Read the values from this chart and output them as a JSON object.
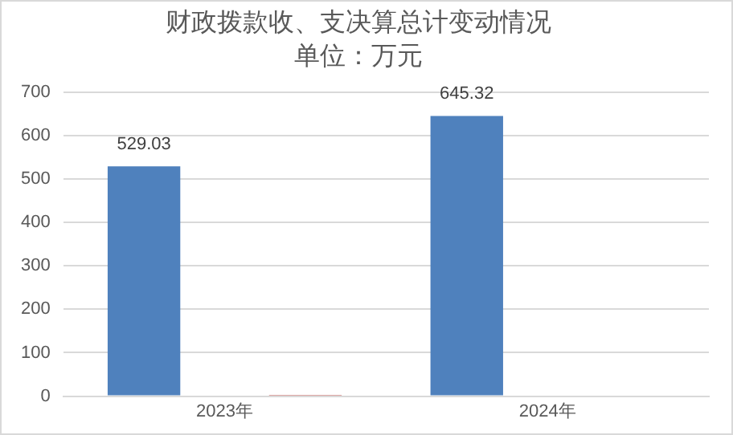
{
  "chart_data": {
    "type": "bar",
    "title": "财政拨款收、支决算总计变动情况",
    "subtitle": "单位：万元",
    "categories": [
      "2023年",
      "2024年"
    ],
    "series": [
      {
        "color": "#4f81bd",
        "values": [
          529.03,
          645.32
        ],
        "value_labels": [
          "529.03",
          "645.32"
        ]
      },
      {
        "color": "#c0504d",
        "values": [
          3,
          0
        ]
      }
    ],
    "ylim": [
      0,
      700
    ],
    "yticks": [
      0,
      100,
      200,
      300,
      400,
      500,
      600,
      700
    ],
    "grid": "y",
    "legend": false
  }
}
